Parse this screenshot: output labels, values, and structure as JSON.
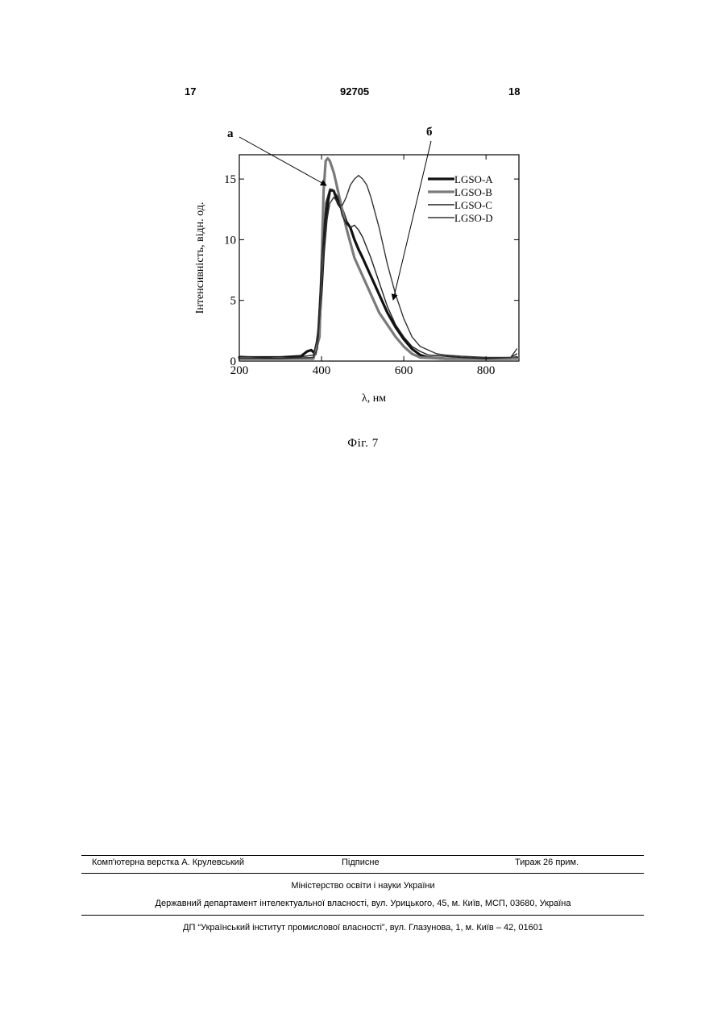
{
  "header": {
    "page_left": "17",
    "patent_number": "92705",
    "page_right": "18"
  },
  "figure": {
    "caption": "Фіг. 7",
    "annotations": {
      "a": "а",
      "b": "б"
    }
  },
  "chart_data": {
    "type": "line",
    "xlabel": "λ, нм",
    "ylabel": "Інтенсивність, відн. од.",
    "xlim": [
      200,
      880
    ],
    "ylim": [
      0,
      17
    ],
    "xticks": [
      "200",
      "400",
      "600",
      "800"
    ],
    "yticks": [
      "0",
      "5",
      "10",
      "15"
    ],
    "grid": false,
    "legend_position": "top-right",
    "series": [
      {
        "name": "LGSO-A",
        "color": "#111111",
        "width": 3.2,
        "x": [
          200,
          300,
          350,
          365,
          375,
          385,
          395,
          405,
          415,
          420,
          425,
          430,
          435,
          440,
          450,
          460,
          470,
          480,
          490,
          500,
          520,
          540,
          560,
          580,
          600,
          620,
          640,
          660,
          700,
          740,
          800,
          860,
          875
        ],
        "y": [
          0.3,
          0.3,
          0.4,
          0.8,
          0.9,
          0.6,
          3,
          9,
          13,
          14,
          14.1,
          14,
          13.5,
          13,
          12.5,
          11.5,
          11,
          10,
          9.2,
          8.5,
          7,
          5.5,
          4,
          2.8,
          1.8,
          1,
          0.5,
          0.3,
          0.2,
          0.2,
          0.2,
          0.2,
          0.3
        ]
      },
      {
        "name": "LGSO-B",
        "color": "#7a7a7a",
        "width": 3.2,
        "x": [
          200,
          380,
          395,
          400,
          405,
          410,
          415,
          420,
          430,
          440,
          450,
          460,
          480,
          500,
          520,
          540,
          560,
          580,
          600,
          620,
          640,
          700,
          800,
          875
        ],
        "y": [
          0.2,
          0.2,
          2,
          8,
          14,
          16.5,
          16.7,
          16.5,
          15.5,
          14,
          12.5,
          11,
          8.5,
          7,
          5.5,
          4,
          3,
          2,
          1.2,
          0.6,
          0.3,
          0.2,
          0.2,
          0.2
        ]
      },
      {
        "name": "LGSO-C",
        "color": "#222222",
        "width": 1.4,
        "x": [
          200,
          300,
          360,
          380,
          390,
          400,
          410,
          420,
          430,
          440,
          450,
          460,
          470,
          480,
          490,
          500,
          520,
          540,
          560,
          580,
          600,
          620,
          640,
          660,
          700,
          740,
          800,
          860,
          875
        ],
        "y": [
          0.4,
          0.2,
          0.4,
          0.5,
          2,
          8,
          13,
          14.2,
          14,
          13.5,
          12,
          11.3,
          11,
          11.2,
          10.8,
          10.2,
          8.5,
          6.5,
          4.5,
          3,
          2,
          1.2,
          0.8,
          0.5,
          0.4,
          0.3,
          0.2,
          0.3,
          0.6
        ]
      },
      {
        "name": "LGSO-D",
        "color": "#333333",
        "width": 1.4,
        "x": [
          200,
          300,
          380,
          390,
          400,
          410,
          420,
          430,
          440,
          450,
          460,
          470,
          480,
          490,
          500,
          510,
          520,
          540,
          560,
          580,
          600,
          620,
          640,
          660,
          680,
          700,
          740,
          800,
          860,
          875
        ],
        "y": [
          0.2,
          0.2,
          0.3,
          1,
          6,
          11,
          13,
          13.5,
          13,
          12.8,
          13.5,
          14.5,
          15,
          15.3,
          15,
          14.5,
          13.5,
          11,
          8,
          5.5,
          3.5,
          2,
          1.2,
          0.9,
          0.6,
          0.5,
          0.4,
          0.3,
          0.3,
          1
        ]
      }
    ]
  },
  "footer": {
    "layout": "Комп'ютерна верстка А. Крулевський",
    "signed": "Підписне",
    "circulation": "Тираж 26 прим.",
    "ministry": "Міністерство освіти і науки України",
    "department": "Державний департамент інтелектуальної власності, вул. Урицького, 45, м. Київ, МСП, 03680, Україна",
    "institute": "ДП “Український інститут промислової власності”, вул. Глазунова, 1, м. Київ – 42, 01601"
  }
}
